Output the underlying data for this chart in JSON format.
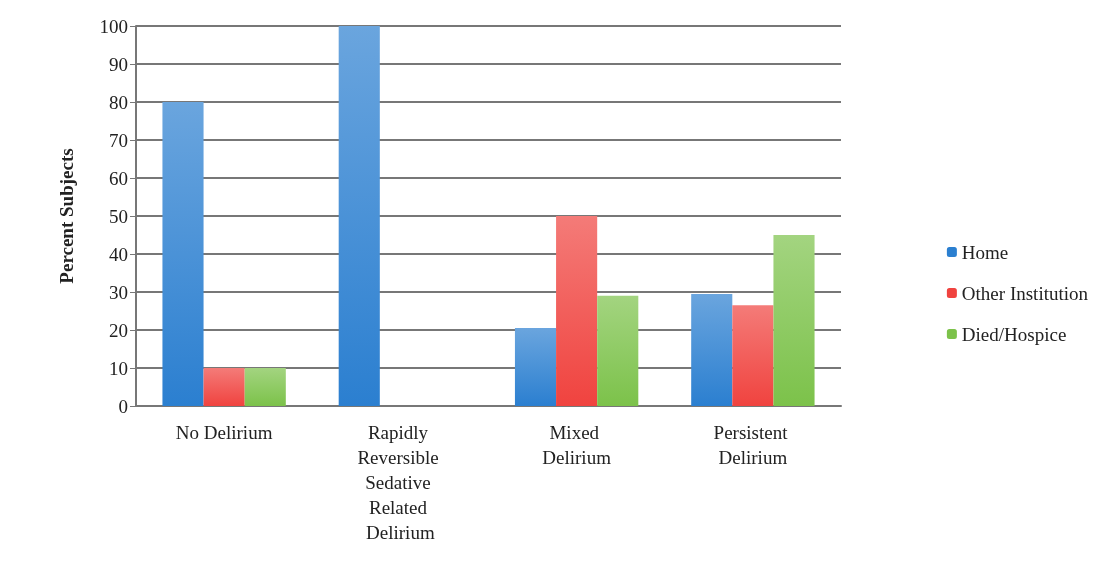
{
  "chart_data": {
    "type": "bar",
    "ylabel": "Percent Subjects",
    "categories": [
      "No Delirium",
      "Rapidly Reversible Sedative Related Delirium",
      "Mixed Delirium",
      "Persistent Delirium"
    ],
    "series": [
      {
        "name": "Home",
        "color": "#2b7fd0",
        "values": [
          80,
          100,
          20.5,
          29.5
        ]
      },
      {
        "name": "Other Institution",
        "color": "#f0433f",
        "values": [
          10,
          0,
          50,
          26.5
        ]
      },
      {
        "name": "Died/Hospice",
        "color": "#7cc24a",
        "values": [
          10,
          0,
          29,
          45
        ]
      }
    ],
    "ylim": [
      0,
      100
    ],
    "yticks": [
      0,
      10,
      20,
      30,
      40,
      50,
      60,
      70,
      80,
      90,
      100
    ],
    "grid": "y",
    "legend": "right"
  }
}
